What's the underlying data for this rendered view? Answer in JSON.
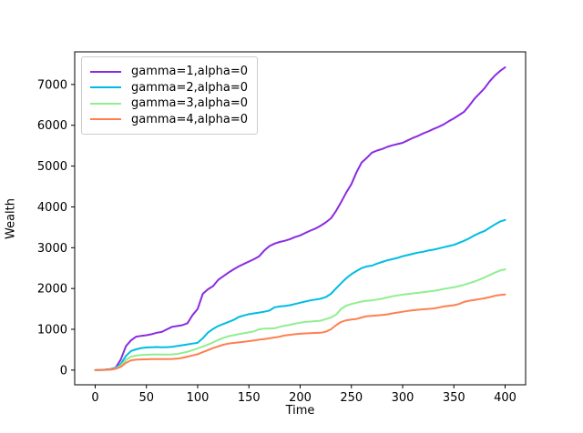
{
  "figure": {
    "background": "#ffffff"
  },
  "chart_data": {
    "type": "line",
    "xlabel": "Time",
    "ylabel": "Wealth",
    "xlim": [
      -20,
      420
    ],
    "ylim": [
      -360,
      7800
    ],
    "xticks": [
      0,
      50,
      100,
      150,
      200,
      250,
      300,
      350,
      400
    ],
    "yticks": [
      0,
      1000,
      2000,
      3000,
      4000,
      5000,
      6000,
      7000
    ],
    "grid": false,
    "legend_position": "upper-left",
    "x": [
      0,
      5,
      10,
      15,
      20,
      25,
      30,
      35,
      40,
      45,
      50,
      55,
      60,
      65,
      70,
      75,
      80,
      85,
      90,
      95,
      100,
      105,
      110,
      115,
      120,
      125,
      130,
      135,
      140,
      145,
      150,
      155,
      160,
      165,
      170,
      175,
      180,
      185,
      190,
      195,
      200,
      205,
      210,
      215,
      220,
      225,
      230,
      235,
      240,
      245,
      250,
      255,
      260,
      265,
      270,
      275,
      280,
      285,
      290,
      295,
      300,
      305,
      310,
      315,
      320,
      325,
      330,
      335,
      340,
      345,
      350,
      355,
      360,
      365,
      370,
      375,
      380,
      385,
      390,
      395,
      400
    ],
    "series": [
      {
        "name": "gamma=1,alpha=0",
        "color": "#8a2be2",
        "values": [
          0,
          5,
          12,
          25,
          60,
          260,
          590,
          730,
          820,
          840,
          855,
          880,
          915,
          935,
          1000,
          1060,
          1080,
          1100,
          1150,
          1350,
          1500,
          1870,
          1980,
          2060,
          2210,
          2300,
          2390,
          2470,
          2540,
          2600,
          2660,
          2720,
          2790,
          2930,
          3040,
          3100,
          3140,
          3170,
          3210,
          3260,
          3300,
          3360,
          3420,
          3470,
          3540,
          3620,
          3720,
          3900,
          4120,
          4350,
          4560,
          4850,
          5090,
          5200,
          5330,
          5380,
          5420,
          5470,
          5510,
          5540,
          5570,
          5630,
          5690,
          5740,
          5800,
          5850,
          5910,
          5960,
          6020,
          6100,
          6170,
          6250,
          6330,
          6480,
          6650,
          6780,
          6910,
          7080,
          7220,
          7330,
          7420
        ]
      },
      {
        "name": "gamma=2,alpha=0",
        "color": "#00bce4",
        "values": [
          0,
          3,
          8,
          18,
          50,
          150,
          350,
          470,
          510,
          540,
          555,
          560,
          565,
          558,
          562,
          570,
          590,
          610,
          630,
          650,
          670,
          780,
          920,
          1010,
          1080,
          1130,
          1180,
          1230,
          1300,
          1340,
          1370,
          1390,
          1410,
          1430,
          1460,
          1540,
          1560,
          1570,
          1590,
          1620,
          1650,
          1680,
          1710,
          1730,
          1750,
          1790,
          1870,
          2000,
          2130,
          2250,
          2350,
          2430,
          2500,
          2540,
          2560,
          2610,
          2650,
          2690,
          2720,
          2750,
          2790,
          2820,
          2850,
          2880,
          2900,
          2930,
          2950,
          2980,
          3010,
          3040,
          3070,
          3120,
          3170,
          3230,
          3300,
          3360,
          3410,
          3490,
          3570,
          3640,
          3680
        ]
      },
      {
        "name": "gamma=3,alpha=0",
        "color": "#90ee90",
        "values": [
          0,
          3,
          6,
          12,
          40,
          110,
          250,
          330,
          355,
          370,
          375,
          380,
          385,
          382,
          380,
          385,
          395,
          420,
          450,
          490,
          535,
          575,
          625,
          680,
          740,
          790,
          830,
          855,
          880,
          905,
          925,
          950,
          1000,
          1015,
          1020,
          1025,
          1060,
          1090,
          1110,
          1140,
          1160,
          1180,
          1190,
          1200,
          1210,
          1250,
          1290,
          1360,
          1500,
          1580,
          1620,
          1650,
          1680,
          1700,
          1710,
          1730,
          1750,
          1780,
          1810,
          1830,
          1850,
          1865,
          1880,
          1895,
          1910,
          1925,
          1940,
          1960,
          1990,
          2010,
          2030,
          2060,
          2090,
          2130,
          2170,
          2220,
          2270,
          2330,
          2390,
          2440,
          2470
        ]
      },
      {
        "name": "gamma=4,alpha=0",
        "color": "#ff7f50",
        "values": [
          0,
          2,
          5,
          9,
          30,
          80,
          180,
          240,
          255,
          262,
          265,
          268,
          270,
          268,
          270,
          273,
          280,
          300,
          330,
          360,
          390,
          440,
          490,
          540,
          580,
          620,
          650,
          665,
          680,
          695,
          710,
          725,
          745,
          760,
          780,
          800,
          820,
          850,
          865,
          880,
          890,
          900,
          905,
          910,
          915,
          940,
          1000,
          1100,
          1180,
          1220,
          1240,
          1255,
          1290,
          1320,
          1330,
          1340,
          1350,
          1365,
          1390,
          1410,
          1430,
          1450,
          1465,
          1480,
          1490,
          1500,
          1510,
          1530,
          1560,
          1575,
          1590,
          1620,
          1670,
          1700,
          1720,
          1740,
          1760,
          1790,
          1820,
          1840,
          1855
        ]
      }
    ]
  }
}
